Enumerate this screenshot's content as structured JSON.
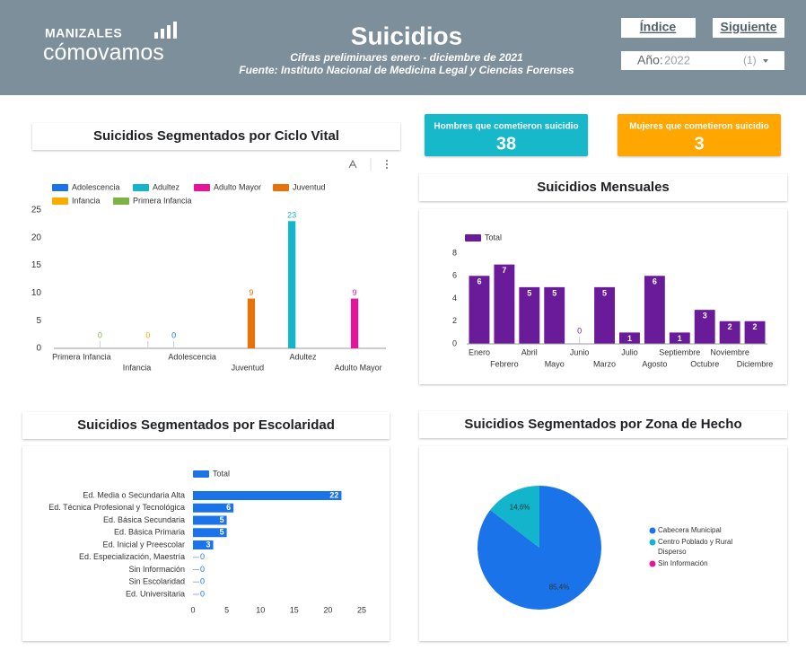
{
  "header": {
    "logo_top": "MANIZALES",
    "logo_bottom": "cómovamos",
    "title": "Suicidios",
    "subtitle": "Cifras preliminares enero - diciembre de 2021",
    "source": "Fuente: Instituto Nacional de Medicina Legal y Ciencias Forenses"
  },
  "buttons": [
    "Índice",
    "Siguiente"
  ],
  "filter": {
    "label": "Año:",
    "value": "2022",
    "count": "(1)"
  },
  "kpis": [
    {
      "label": "Hombres que cometieron suicidio",
      "value": 38,
      "color": "#19b8c9"
    },
    {
      "label": "Mujeres que cometieron suicidio",
      "value": 3,
      "color": "#ffa600"
    }
  ],
  "chart_data": [
    {
      "type": "grouped_bar",
      "title": "Suicidios Segmentados por Ciclo Vital",
      "categories": [
        "Primera Infancia",
        "Infancia",
        "Adolescencia",
        "Juventud",
        "Adultez",
        "Adulto Mayor"
      ],
      "series": [
        {
          "name": "Adolescencia",
          "color": "#1a73e8",
          "values": [
            null,
            null,
            0,
            null,
            null,
            null
          ]
        },
        {
          "name": "Adultez",
          "color": "#12b5cb",
          "values": [
            null,
            null,
            null,
            null,
            23,
            null
          ]
        },
        {
          "name": "Adulto Mayor",
          "color": "#e8129b",
          "values": [
            null,
            null,
            null,
            null,
            null,
            9
          ]
        },
        {
          "name": "Juventud",
          "color": "#e8710a",
          "values": [
            null,
            null,
            null,
            9,
            null,
            null
          ]
        },
        {
          "name": "Infancia",
          "color": "#f9ab00",
          "values": [
            null,
            0,
            null,
            null,
            null,
            null
          ]
        },
        {
          "name": "Primera Infancia",
          "color": "#7cb342",
          "values": [
            0,
            null,
            null,
            null,
            null,
            null
          ]
        }
      ],
      "ylim": [
        0,
        25
      ],
      "yticks": [
        0,
        5,
        10,
        15,
        20,
        25
      ],
      "grid": false
    },
    {
      "type": "bar",
      "title": "Suicidios Mensuales",
      "categories": [
        "Enero",
        "Febrero",
        "Abril",
        "Mayo",
        "Junio",
        "Marzo",
        "Julio",
        "Agosto",
        "Septiembre",
        "Octubre",
        "Noviembre",
        "Diciembre"
      ],
      "series": [
        {
          "name": "Total",
          "color": "#6a1b9a",
          "values": [
            6,
            7,
            5,
            5,
            0,
            5,
            1,
            6,
            1,
            3,
            2,
            2
          ]
        }
      ],
      "ylim": [
        0,
        8
      ],
      "yticks": [
        0,
        2,
        4,
        6,
        8
      ],
      "grid": false
    },
    {
      "type": "barh",
      "title": "Suicidios Segmentados por Escolaridad",
      "categories": [
        "Ed. Media o Secundaria Alta",
        "Ed. Técnica Profesional y Tecnológica",
        "Ed. Básica Secundaria",
        "Ed. Básica Primaria",
        "Ed. Inicial y Preescolar",
        "Ed. Especialización, Maestría",
        "Sin Información",
        "Sin Escolaridad",
        "Ed. Universitaria"
      ],
      "series": [
        {
          "name": "Total",
          "color": "#1a73e8",
          "values": [
            22,
            6,
            5,
            5,
            3,
            0,
            0,
            0,
            0
          ]
        }
      ],
      "xlim": [
        0,
        25
      ],
      "xticks": [
        0,
        5,
        10,
        15,
        20,
        25
      ],
      "grid": false
    },
    {
      "type": "pie",
      "title": "Suicidios Segmentados por Zona de Hecho",
      "categories": [
        "Cabecera Municipal",
        "Centro Poblado y Rural Disperso",
        "Sin Información"
      ],
      "values": [
        85.4,
        14.6,
        0
      ],
      "value_labels": [
        "85,4%",
        "14,6%",
        null
      ],
      "colors": [
        "#1a73e8",
        "#12b5cb",
        "#e8129b"
      ]
    }
  ]
}
